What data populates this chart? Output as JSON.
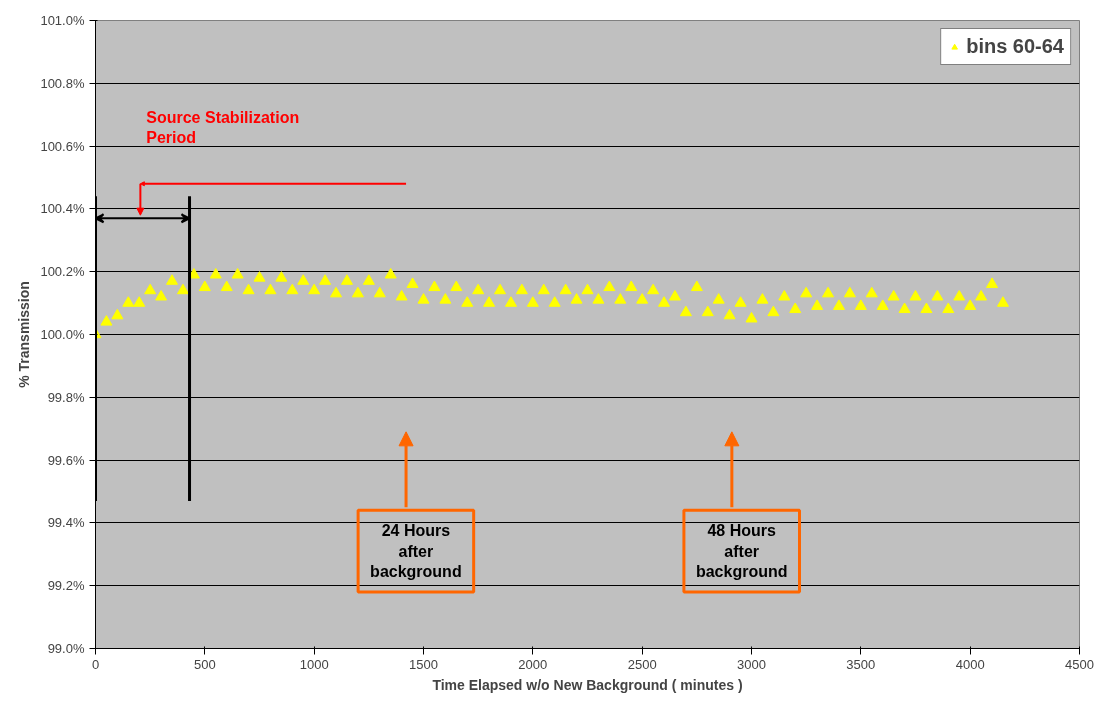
{
  "chart_data": {
    "type": "scatter",
    "xlabel": "Time Elapsed w/o New Background ( minutes )",
    "ylabel": "% Transmission",
    "x": [
      0,
      50,
      100,
      150,
      200,
      250,
      300,
      350,
      400,
      450,
      500,
      550,
      600,
      650,
      700,
      750,
      800,
      850,
      900,
      950,
      1000,
      1050,
      1100,
      1150,
      1200,
      1250,
      1300,
      1350,
      1400,
      1450,
      1500,
      1550,
      1600,
      1650,
      1700,
      1750,
      1800,
      1850,
      1900,
      1950,
      2000,
      2050,
      2100,
      2150,
      2200,
      2250,
      2300,
      2350,
      2400,
      2450,
      2500,
      2550,
      2600,
      2650,
      2700,
      2750,
      2800,
      2850,
      2900,
      2950,
      3000,
      3050,
      3100,
      3150,
      3200,
      3250,
      3300,
      3350,
      3400,
      3450,
      3500,
      3550,
      3600,
      3650,
      3700,
      3750,
      3800,
      3850,
      3900,
      3950,
      4000,
      4050,
      4100,
      4150
    ],
    "series": [
      {
        "name": "bins 60-64",
        "color": "#ffff00",
        "values": [
          100.0,
          100.04,
          100.06,
          100.1,
          100.1,
          100.14,
          100.12,
          100.17,
          100.14,
          100.19,
          100.15,
          100.19,
          100.15,
          100.19,
          100.14,
          100.18,
          100.14,
          100.18,
          100.14,
          100.17,
          100.14,
          100.17,
          100.13,
          100.17,
          100.13,
          100.17,
          100.13,
          100.19,
          100.12,
          100.16,
          100.11,
          100.15,
          100.11,
          100.15,
          100.1,
          100.14,
          100.1,
          100.14,
          100.1,
          100.14,
          100.1,
          100.14,
          100.1,
          100.14,
          100.11,
          100.14,
          100.11,
          100.15,
          100.11,
          100.15,
          100.11,
          100.14,
          100.1,
          100.12,
          100.07,
          100.15,
          100.07,
          100.11,
          100.06,
          100.1,
          100.05,
          100.11,
          100.07,
          100.12,
          100.08,
          100.13,
          100.09,
          100.13,
          100.09,
          100.13,
          100.09,
          100.13,
          100.09,
          100.12,
          100.08,
          100.12,
          100.08,
          100.12,
          100.08,
          100.12,
          100.09,
          100.12,
          100.16,
          100.1
        ]
      }
    ],
    "xlim": [
      0,
      4500
    ],
    "xticks": [
      0,
      500,
      1000,
      1500,
      2000,
      2500,
      3000,
      3500,
      4000,
      4500
    ],
    "ylim": [
      99.0,
      101.0
    ],
    "yticks": [
      {
        "value": 99.0,
        "label": "99.0%"
      },
      {
        "value": 99.2,
        "label": "99.2%"
      },
      {
        "value": 99.4,
        "label": "99.4%"
      },
      {
        "value": 99.6,
        "label": "99.6%"
      },
      {
        "value": 99.8,
        "label": "99.8%"
      },
      {
        "value": 100.0,
        "label": "100.0%"
      },
      {
        "value": 100.2,
        "label": "100.2%"
      },
      {
        "value": 100.4,
        "label": "100.4%"
      },
      {
        "value": 100.6,
        "label": "100.6%"
      },
      {
        "value": 100.8,
        "label": "100.8%"
      },
      {
        "value": 101.0,
        "label": "101.0%"
      }
    ],
    "grid": "y",
    "legend": "top right",
    "marker": "triangle",
    "ref_lines": [
      {
        "axis": "x",
        "value": 0,
        "color": "#000000"
      },
      {
        "axis": "x",
        "value": 430,
        "color": "#000000"
      }
    ],
    "annotations": [
      "Source Stabilization Period",
      "24 Hours after background",
      "48 Hours after background"
    ]
  }
}
